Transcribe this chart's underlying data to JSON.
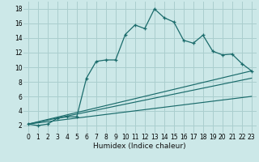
{
  "xlabel": "Humidex (Indice chaleur)",
  "bg_color": "#cce8e8",
  "grid_color": "#aacece",
  "line_color": "#1a6b6b",
  "xlim": [
    -0.5,
    23.5
  ],
  "ylim": [
    1.0,
    19.0
  ],
  "xticks": [
    0,
    1,
    2,
    3,
    4,
    5,
    6,
    7,
    8,
    9,
    10,
    11,
    12,
    13,
    14,
    15,
    16,
    17,
    18,
    19,
    20,
    21,
    22,
    23
  ],
  "yticks": [
    2,
    4,
    6,
    8,
    10,
    12,
    14,
    16,
    18
  ],
  "curve1_x": [
    0,
    1,
    2,
    3,
    4,
    5,
    6,
    7,
    8,
    9,
    10,
    11,
    12,
    13,
    14,
    15,
    16,
    17,
    18,
    19,
    20,
    21,
    22,
    23
  ],
  "curve1_y": [
    2.2,
    2.0,
    2.2,
    3.0,
    3.2,
    3.2,
    8.5,
    10.8,
    11.0,
    11.0,
    14.5,
    15.8,
    15.3,
    18.0,
    16.8,
    16.2,
    13.7,
    13.3,
    14.4,
    12.2,
    11.7,
    11.8,
    10.5,
    9.5
  ],
  "fanline1_x": [
    0,
    23
  ],
  "fanline1_y": [
    2.2,
    9.5
  ],
  "fanline2_x": [
    0,
    23
  ],
  "fanline2_y": [
    2.2,
    8.5
  ],
  "fanline3_x": [
    0,
    23
  ],
  "fanline3_y": [
    2.2,
    6.0
  ]
}
